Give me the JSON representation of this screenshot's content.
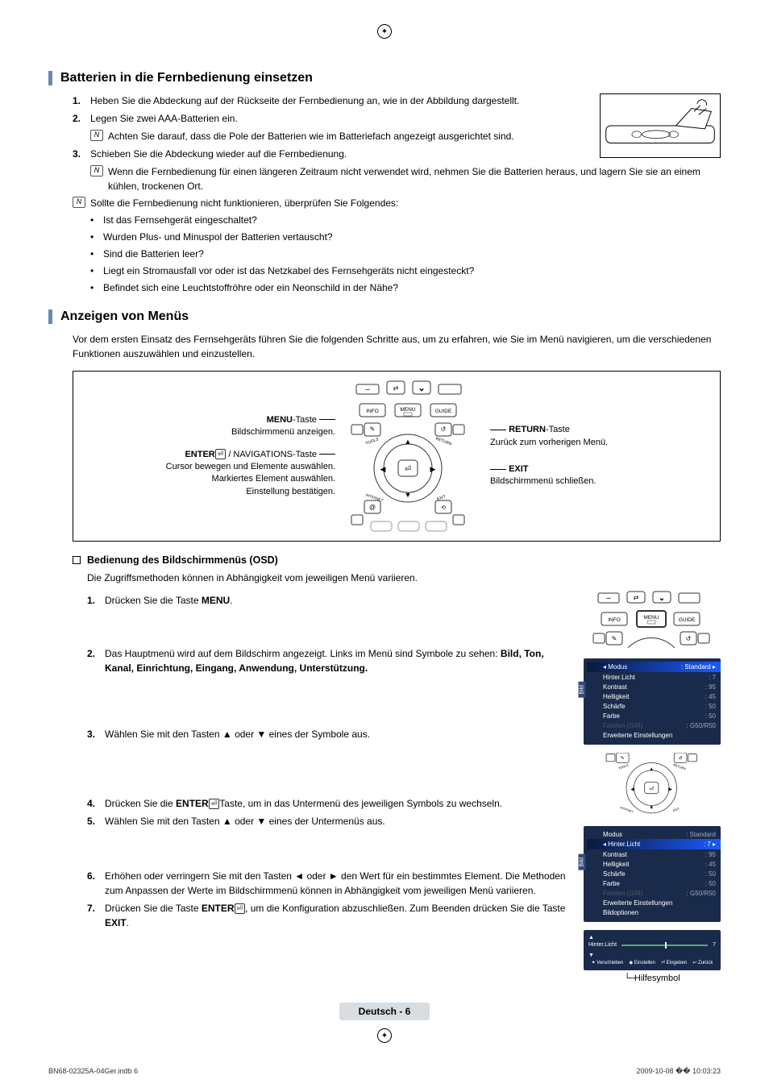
{
  "section1": {
    "title": "Batterien in die Fernbedienung einsetzen",
    "steps": [
      "Heben Sie die Abdeckung auf der Rückseite der Fernbedienung an, wie in der Abbildung dargestellt.",
      "Legen Sie zwei AAA-Batterien ein.",
      "Schieben Sie die Abdeckung wieder auf die Fernbedienung."
    ],
    "note2": "Achten Sie darauf, dass die Pole der Batterien wie im Batteriefach angezeigt ausgerichtet sind.",
    "note3": "Wenn die Fernbedienung für einen längeren Zeitraum nicht verwendet wird, nehmen Sie die Batterien heraus, und lagern Sie sie an einem kühlen, trockenen Ort.",
    "note_trouble": "Sollte die Fernbedienung nicht funktionieren, überprüfen Sie Folgendes:",
    "bullets": [
      "Ist das Fernsehgerät eingeschaltet?",
      "Wurden Plus- und Minuspol der Batterien vertauscht?",
      "Sind die Batterien leer?",
      "Liegt ein Stromausfall vor oder ist das Netzkabel des Fernsehgeräts nicht eingesteckt?",
      "Befindet sich eine Leuchtstoffröhre oder ein Neonschild in der Nähe?"
    ]
  },
  "section2": {
    "title": "Anzeigen von Menüs",
    "intro": "Vor dem ersten Einsatz des Fernsehgeräts führen Sie die folgenden Schritte aus, um zu erfahren, wie Sie im Menü navigieren, um die verschiedenen Funktionen auszuwählen und einzustellen.",
    "diagram": {
      "menu_btn_bold": "MENU",
      "menu_btn_suffix": "-Taste",
      "menu_btn_desc": "Bildschirmmenü anzeigen.",
      "enter_bold": "ENTER",
      "enter_suffix": " / NAVIGATIONS-Taste",
      "enter_desc1": "Cursor bewegen und Elemente auswählen.",
      "enter_desc2": "Markiertes Element auswählen.",
      "enter_desc3": "Einstellung bestätigen.",
      "return_bold": "RETURN",
      "return_suffix": "-Taste",
      "return_desc": "Zurück zum vorherigen Menü.",
      "exit_bold": "EXIT",
      "exit_desc": "Bildschirmmenü schließen.",
      "keys": {
        "info": "INFO",
        "menu": "MENU",
        "guide": "GUIDE",
        "tools": "TOOLS",
        "return": "RETURN",
        "internet": "INTERNET",
        "exit": "EXIT"
      }
    },
    "osd": {
      "heading": "Bedienung des Bildschirmmenüs (OSD)",
      "intro": "Die Zugriffsmethoden können in Abhängigkeit vom jeweiligen Menü variieren.",
      "steps": {
        "s1_a": "Drücken Sie die Taste ",
        "s1_b": "MENU",
        "s1_c": ".",
        "s2_a": "Das Hauptmenü wird auf dem Bildschirm angezeigt. Links im Menü sind Symbole zu sehen: ",
        "s2_b": "Bild, Ton, Kanal, Einrichtung, Eingang, Anwendung, Unterstützung.",
        "s3": "Wählen Sie mit den Tasten ▲ oder ▼ eines der Symbole aus.",
        "s4_a": "Drücken Sie die ",
        "s4_b": "ENTER",
        "s4_c": "Taste, um in das Untermenü des jeweiligen Symbols zu wechseln.",
        "s5": "Wählen Sie mit den Tasten ▲ oder ▼ eines der Untermenüs aus.",
        "s6": "Erhöhen oder verringern Sie mit den Tasten ◄ oder ► den Wert für ein bestimmtes Element. Die Methoden zum Anpassen der Werte im Bildschirmmenü können in Abhängigkeit vom jeweiligen Menü variieren.",
        "s7_a": "Drücken Sie die Taste ",
        "s7_b": "ENTER",
        "s7_c": ", um die Konfiguration abzuschließen. Zum Beenden drücken Sie die Taste ",
        "s7_d": "EXIT",
        "s7_e": "."
      }
    },
    "menu_panel": {
      "rows": [
        {
          "label": "Modus",
          "value": ": Standard",
          "highlight_a": true
        },
        {
          "label": "Hinter.Licht",
          "value": ": 7"
        },
        {
          "label": "Kontrast",
          "value": ": 95"
        },
        {
          "label": "Helligkeit",
          "value": ": 45"
        },
        {
          "label": "Schärfe",
          "value": ": 50"
        },
        {
          "label": "Farbe",
          "value": ": 50"
        },
        {
          "label": "Farbton (G/R)",
          "value": ": G50/R50",
          "dim": true
        },
        {
          "label": "Erweiterte Einstellungen",
          "value": ""
        }
      ],
      "rows2": [
        {
          "label": "Modus",
          "value": ": Standard"
        },
        {
          "label": "Hinter.Licht",
          "value": ": 7",
          "highlight_b": true
        },
        {
          "label": "Kontrast",
          "value": ": 95"
        },
        {
          "label": "Helligkeit",
          "value": ": 45"
        },
        {
          "label": "Schärfe",
          "value": ": 50"
        },
        {
          "label": "Farbe",
          "value": ": 50"
        },
        {
          "label": "Farbton (G/R)",
          "value": ": G50/R50",
          "dim": true
        },
        {
          "label": "Erweiterte Einstellungen",
          "value": ""
        },
        {
          "label": "Bildoptionen",
          "value": ""
        }
      ]
    },
    "slider": {
      "label": "Hinter.Licht",
      "value": "7",
      "hints": [
        "✦ Verschieben",
        "◆ Einstellen",
        "⏎ Eingeben",
        "↩ Zurück"
      ]
    },
    "help_label": "Hilfesymbol"
  },
  "footer": {
    "page": "Deutsch - 6",
    "doc_left": "BN68-02325A-04Ger.indb   6",
    "doc_right": "2009-10-08   �� 10:03:23"
  },
  "colors": {
    "section_bar": "#6a8caf",
    "osd_bg": "#1a2a4a",
    "osd_hl_start": "#0a1a3a",
    "osd_hl_end": "#1a5aff",
    "foot_box": "#d8dde2"
  }
}
